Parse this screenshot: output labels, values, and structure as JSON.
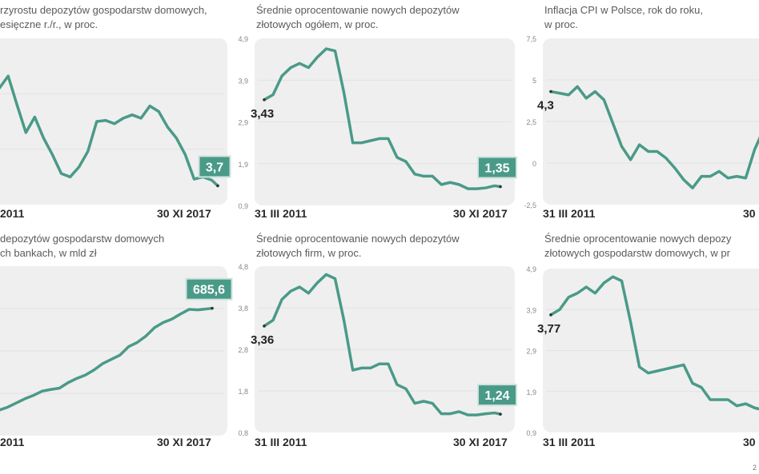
{
  "colors": {
    "line": "#4a9a88",
    "label_box": "#4a9a88",
    "plot_bg": "#efefef",
    "grid": "#e2e2e2"
  },
  "footnote": "2",
  "chart_data": [
    {
      "type": "line",
      "title_lines": [
        "rzyrostu depozytów gospodarstw domowych,",
        "esięczne r./r., w proc."
      ],
      "x_labels": [
        "2011",
        "30 XI 2017"
      ],
      "yticks": [],
      "gridlines": [
        7,
        12
      ],
      "ylim": [
        2,
        17
      ],
      "start_label": "",
      "end_label": "3,7",
      "x": [
        "2011-03",
        "2011-06",
        "2011-09",
        "2011-12",
        "2012-03",
        "2012-06",
        "2012-09",
        "2012-12",
        "2013-03",
        "2013-06",
        "2013-09",
        "2013-12",
        "2014-03",
        "2014-06",
        "2014-09",
        "2014-12",
        "2015-03",
        "2015-06",
        "2015-09",
        "2015-12",
        "2016-03",
        "2016-06",
        "2016-09",
        "2016-12",
        "2017-03",
        "2017-06",
        "2017-09",
        "2017-11"
      ],
      "values": [
        14.6,
        15.0,
        12.5,
        13.6,
        11.0,
        8.5,
        9.9,
        8.0,
        6.5,
        4.8,
        4.5,
        5.4,
        6.8,
        9.5,
        9.6,
        9.3,
        9.8,
        10.1,
        9.8,
        10.9,
        10.4,
        9.0,
        8.0,
        6.5,
        4.3,
        4.5,
        4.2,
        3.7
      ]
    },
    {
      "type": "line",
      "title_lines": [
        "Średnie oprocentowanie nowych depozytów",
        "złotowych ogółem, w proc."
      ],
      "x_labels": [
        "31 III 2011",
        "30 XI 2017"
      ],
      "yticks": [
        "4,9",
        "3,9",
        "2,9",
        "1,9",
        "0,9"
      ],
      "gridlines": [
        1.9,
        2.9,
        3.9
      ],
      "ylim": [
        0.9,
        4.9
      ],
      "start_label": "3,43",
      "end_label": "1,35",
      "x": [
        "2011-03",
        "2011-06",
        "2011-09",
        "2011-12",
        "2012-03",
        "2012-06",
        "2012-09",
        "2012-12",
        "2013-03",
        "2013-06",
        "2013-09",
        "2013-12",
        "2014-03",
        "2014-06",
        "2014-09",
        "2014-12",
        "2015-03",
        "2015-06",
        "2015-09",
        "2015-12",
        "2016-03",
        "2016-06",
        "2016-09",
        "2016-12",
        "2017-03",
        "2017-06",
        "2017-09",
        "2017-11"
      ],
      "values": [
        3.43,
        3.55,
        4.0,
        4.2,
        4.3,
        4.2,
        4.45,
        4.65,
        4.6,
        3.6,
        2.4,
        2.4,
        2.45,
        2.5,
        2.5,
        2.05,
        1.95,
        1.65,
        1.6,
        1.6,
        1.4,
        1.45,
        1.4,
        1.3,
        1.3,
        1.32,
        1.37,
        1.35
      ]
    },
    {
      "type": "line",
      "title_lines": [
        "Inflacja CPI w Polsce, rok do roku,",
        "w proc."
      ],
      "x_labels": [
        "31 III 2011",
        "30"
      ],
      "yticks": [
        "7,5",
        "5",
        "2,5",
        "0",
        "-2,5"
      ],
      "gridlines": [
        0,
        2.5,
        5
      ],
      "ylim": [
        -2.5,
        7.5
      ],
      "start_label": "4,3",
      "end_label": "",
      "x": [
        "2011-03",
        "2011-06",
        "2011-09",
        "2011-12",
        "2012-03",
        "2012-06",
        "2012-09",
        "2012-12",
        "2013-03",
        "2013-06",
        "2013-09",
        "2013-12",
        "2014-03",
        "2014-06",
        "2014-09",
        "2014-12",
        "2015-03",
        "2015-06",
        "2015-09",
        "2015-12",
        "2016-03",
        "2016-06",
        "2016-09",
        "2016-12",
        "2017-03",
        "2017-06",
        "2017-09",
        "2017-11"
      ],
      "values": [
        4.3,
        4.2,
        4.1,
        4.6,
        3.9,
        4.3,
        3.8,
        2.4,
        1.0,
        0.2,
        1.1,
        0.7,
        0.7,
        0.3,
        -0.3,
        -1.0,
        -1.5,
        -0.8,
        -0.8,
        -0.5,
        -0.9,
        -0.8,
        -0.9,
        0.8,
        2.0,
        1.5,
        2.2,
        2.5
      ]
    },
    {
      "type": "line",
      "title_lines": [
        "depozytów gospodarstw domowych",
        "ch bankach, w mld zł"
      ],
      "x_labels": [
        "2011",
        "30 XI 2017"
      ],
      "yticks": [],
      "gridlines": [
        485,
        585,
        685
      ],
      "ylim": [
        385,
        785
      ],
      "start_label": "",
      "end_label": "685,6",
      "x": [
        "2011-03",
        "2011-06",
        "2011-09",
        "2011-12",
        "2012-03",
        "2012-06",
        "2012-09",
        "2012-12",
        "2013-03",
        "2013-06",
        "2013-09",
        "2013-12",
        "2014-03",
        "2014-06",
        "2014-09",
        "2014-12",
        "2015-03",
        "2015-06",
        "2015-09",
        "2015-12",
        "2016-03",
        "2016-06",
        "2016-09",
        "2016-12",
        "2017-03",
        "2017-06",
        "2017-09",
        "2017-11"
      ],
      "values": [
        415,
        432,
        445,
        452,
        462,
        472,
        480,
        490,
        494,
        497,
        510,
        520,
        528,
        540,
        555,
        565,
        575,
        595,
        605,
        620,
        640,
        652,
        660,
        672,
        683,
        682,
        684,
        685.6
      ]
    },
    {
      "type": "line",
      "title_lines": [
        "Średnie oprocentowanie nowych depozytów",
        "złotowych firm, w proc."
      ],
      "x_labels": [
        "31 III 2011",
        "30 XI 2017"
      ],
      "yticks": [
        "4,8",
        "3,8",
        "2,8",
        "1,8",
        "0,8"
      ],
      "gridlines": [
        1.8,
        2.8,
        3.8
      ],
      "ylim": [
        0.8,
        4.8
      ],
      "start_label": "3,36",
      "end_label": "1,24",
      "x": [
        "2011-03",
        "2011-06",
        "2011-09",
        "2011-12",
        "2012-03",
        "2012-06",
        "2012-09",
        "2012-12",
        "2013-03",
        "2013-06",
        "2013-09",
        "2013-12",
        "2014-03",
        "2014-06",
        "2014-09",
        "2014-12",
        "2015-03",
        "2015-06",
        "2015-09",
        "2015-12",
        "2016-03",
        "2016-06",
        "2016-09",
        "2016-12",
        "2017-03",
        "2017-06",
        "2017-09",
        "2017-11"
      ],
      "values": [
        3.36,
        3.5,
        4.0,
        4.2,
        4.3,
        4.15,
        4.4,
        4.6,
        4.5,
        3.5,
        2.3,
        2.35,
        2.35,
        2.45,
        2.45,
        1.95,
        1.85,
        1.5,
        1.55,
        1.5,
        1.25,
        1.25,
        1.3,
        1.22,
        1.22,
        1.25,
        1.27,
        1.24
      ]
    },
    {
      "type": "line",
      "title_lines": [
        "Średnie oprocentowanie nowych depozy",
        "złotowych gospodarstw domowych, w pr"
      ],
      "x_labels": [
        "31 III 2011",
        "30"
      ],
      "yticks": [
        "4,9",
        "3,9",
        "2,9",
        "1,9",
        "0,9"
      ],
      "gridlines": [
        1.9,
        2.9,
        3.9
      ],
      "ylim": [
        0.9,
        4.9
      ],
      "start_label": "3,77",
      "end_label": "",
      "x": [
        "2011-03",
        "2011-06",
        "2011-09",
        "2011-12",
        "2012-03",
        "2012-06",
        "2012-09",
        "2012-12",
        "2013-03",
        "2013-06",
        "2013-09",
        "2013-12",
        "2014-03",
        "2014-06",
        "2014-09",
        "2014-12",
        "2015-03",
        "2015-06",
        "2015-09",
        "2015-12",
        "2016-03",
        "2016-06",
        "2016-09",
        "2016-12",
        "2017-03",
        "2017-06",
        "2017-09",
        "2017-11"
      ],
      "values": [
        3.77,
        3.9,
        4.2,
        4.3,
        4.45,
        4.3,
        4.55,
        4.7,
        4.6,
        3.6,
        2.5,
        2.35,
        2.4,
        2.45,
        2.5,
        2.55,
        2.1,
        2.0,
        1.7,
        1.7,
        1.7,
        1.55,
        1.6,
        1.5,
        1.45,
        1.45,
        1.42,
        1.4
      ]
    }
  ]
}
